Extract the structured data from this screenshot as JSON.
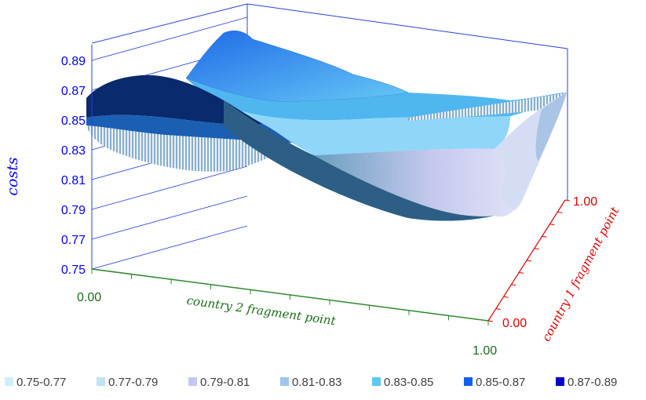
{
  "chart_data": {
    "type": "surface",
    "zlabel": "costs",
    "xlabel": "country 2 fragment point",
    "ylabel": "country 1 fragment point",
    "z_ticks": [
      "0.75",
      "0.77",
      "0.79",
      "0.81",
      "0.83",
      "0.85",
      "0.87",
      "0.89"
    ],
    "zlim": [
      0.75,
      0.89
    ],
    "x_ticks": [
      "0.00",
      "1.00"
    ],
    "y_ticks": [
      "0.00",
      "1.00"
    ],
    "xlim": [
      0.0,
      1.0
    ],
    "ylim": [
      0.0,
      1.0
    ],
    "legend_position": "bottom",
    "bands": [
      {
        "label": "0.75-0.77",
        "range": [
          0.75,
          0.77
        ],
        "color": "#cdeffd"
      },
      {
        "label": "0.77-0.79",
        "range": [
          0.77,
          0.79
        ],
        "color": "#bfe3f7"
      },
      {
        "label": "0.79-0.81",
        "range": [
          0.79,
          0.81
        ],
        "color": "#c4c8ef"
      },
      {
        "label": "0.81-0.83",
        "range": [
          0.81,
          0.83
        ],
        "color": "#9ec4ee"
      },
      {
        "label": "0.83-0.85",
        "range": [
          0.83,
          0.85
        ],
        "color": "#5ec8f5"
      },
      {
        "label": "0.85-0.87",
        "range": [
          0.85,
          0.87
        ],
        "color": "#1160f0"
      },
      {
        "label": "0.87-0.89",
        "range": [
          0.87,
          0.89
        ],
        "color": "#0000cc"
      }
    ]
  }
}
